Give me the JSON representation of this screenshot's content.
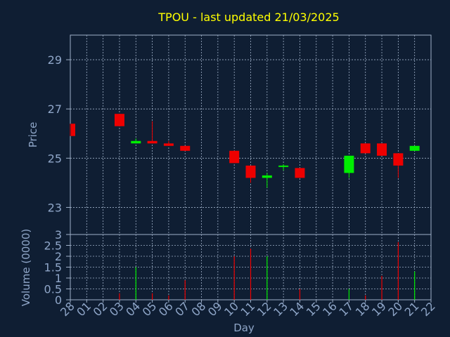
{
  "chart_data": {
    "type": "candlestick",
    "title": "TPOU - last updated 21/03/2025",
    "xlabel": "Day",
    "categories": [
      "28",
      "01",
      "02",
      "03",
      "04",
      "05",
      "06",
      "07",
      "08",
      "09",
      "10",
      "11",
      "12",
      "13",
      "14",
      "15",
      "16",
      "17",
      "18",
      "19",
      "20",
      "21",
      "22"
    ],
    "price_panel": {
      "ylabel": "Price",
      "ylim": [
        21.9,
        30.0
      ],
      "yticks": [
        "29",
        "27",
        "25",
        "23"
      ],
      "grid": true,
      "candles": [
        {
          "day": "28",
          "open": 26.4,
          "close": 25.9,
          "high": 26.4,
          "low": 25.9
        },
        {
          "day": "03",
          "open": 26.8,
          "close": 26.3,
          "high": 26.8,
          "low": 26.3
        },
        {
          "day": "04",
          "open": 25.6,
          "close": 25.7,
          "high": 25.8,
          "low": 25.6
        },
        {
          "day": "05",
          "open": 25.7,
          "close": 25.6,
          "high": 26.5,
          "low": 25.6
        },
        {
          "day": "06",
          "open": 25.6,
          "close": 25.5,
          "high": 25.7,
          "low": 25.5
        },
        {
          "day": "07",
          "open": 25.5,
          "close": 25.3,
          "high": 25.5,
          "low": 25.3
        },
        {
          "day": "10",
          "open": 25.3,
          "close": 24.8,
          "high": 25.3,
          "low": 24.8
        },
        {
          "day": "11",
          "open": 24.7,
          "close": 24.2,
          "high": 24.7,
          "low": 24.0
        },
        {
          "day": "12",
          "open": 24.2,
          "close": 24.3,
          "high": 24.4,
          "low": 23.8
        },
        {
          "day": "13",
          "open": 24.7,
          "close": 24.7,
          "high": 24.75,
          "low": 24.5
        },
        {
          "day": "14",
          "open": 24.6,
          "close": 24.2,
          "high": 24.6,
          "low": 24.2
        },
        {
          "day": "17",
          "open": 24.4,
          "close": 25.1,
          "high": 25.1,
          "low": 24.2
        },
        {
          "day": "18",
          "open": 25.6,
          "close": 25.2,
          "high": 25.6,
          "low": 25.2
        },
        {
          "day": "19",
          "open": 25.6,
          "close": 25.1,
          "high": 25.6,
          "low": 25.1
        },
        {
          "day": "20",
          "open": 25.2,
          "close": 24.7,
          "high": 25.2,
          "low": 24.2
        },
        {
          "day": "21",
          "open": 25.3,
          "close": 25.5,
          "high": 25.5,
          "low": 25.3
        }
      ]
    },
    "volume_panel": {
      "ylabel": "Volume (0000)",
      "ylim": [
        0,
        3
      ],
      "yticks": [
        "3",
        "2.5",
        "2",
        "1.5",
        "1",
        "0.5",
        "0"
      ],
      "bars": [
        {
          "day": "03",
          "value": 0.3,
          "dir": "down"
        },
        {
          "day": "04",
          "value": 1.5,
          "dir": "up"
        },
        {
          "day": "05",
          "value": 0.3,
          "dir": "down"
        },
        {
          "day": "06",
          "value": 0.2,
          "dir": "down"
        },
        {
          "day": "07",
          "value": 0.9,
          "dir": "down"
        },
        {
          "day": "10",
          "value": 2.0,
          "dir": "down"
        },
        {
          "day": "11",
          "value": 2.35,
          "dir": "down"
        },
        {
          "day": "12",
          "value": 2.0,
          "dir": "up"
        },
        {
          "day": "14",
          "value": 0.5,
          "dir": "down"
        },
        {
          "day": "17",
          "value": 0.5,
          "dir": "up"
        },
        {
          "day": "18",
          "value": 0.2,
          "dir": "down"
        },
        {
          "day": "19",
          "value": 1.1,
          "dir": "down"
        },
        {
          "day": "20",
          "value": 2.65,
          "dir": "down"
        },
        {
          "day": "21",
          "value": 1.3,
          "dir": "up"
        }
      ]
    },
    "colors": {
      "background": "#0f1e33",
      "title": "#ffff00",
      "axis_text": "#8fa6c8",
      "grid": "#9fb0c8",
      "up": "#00ee00",
      "down": "#ee0000"
    }
  }
}
